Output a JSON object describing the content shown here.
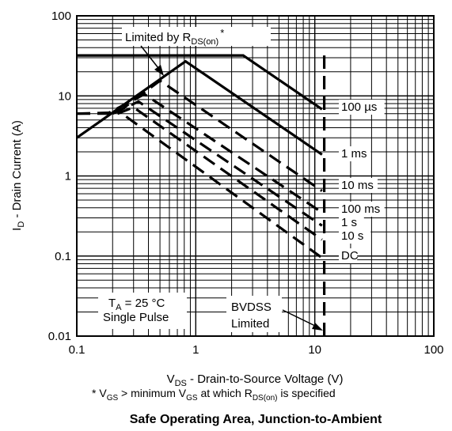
{
  "chart_data": {
    "type": "line",
    "title": "Safe Operating Area, Junction-to-Ambient",
    "xlabel": "V_DS - Drain-to-Source Voltage (V)",
    "ylabel": "I_D - Drain Current (A)",
    "x_scale": "log",
    "y_scale": "log",
    "xlim": [
      0.1,
      100
    ],
    "ylim": [
      0.01,
      100
    ],
    "grid": true,
    "x_ticks": [
      "0.1",
      "1",
      "10",
      "100"
    ],
    "y_ticks": [
      "0.01",
      "0.1",
      "1",
      "10",
      "100"
    ],
    "series": [
      {
        "name": "100 µs",
        "style": "solid",
        "points": [
          [
            0.1,
            32
          ],
          [
            2.5,
            32
          ],
          [
            11.5,
            6.8
          ]
        ]
      },
      {
        "name": "1 ms",
        "style": "solid",
        "points": [
          [
            0.1,
            3.0
          ],
          [
            0.82,
            27
          ],
          [
            11.5,
            1.85
          ]
        ]
      },
      {
        "name": "10 ms",
        "style": "dashed",
        "points": [
          [
            0.1,
            6.0
          ],
          [
            0.22,
            6.2
          ],
          [
            0.5,
            15.5
          ],
          [
            11.5,
            0.65
          ]
        ]
      },
      {
        "name": "100 ms",
        "style": "dashed",
        "points": [
          [
            0.1,
            6.0
          ],
          [
            0.18,
            6.0
          ],
          [
            0.37,
            10.5
          ],
          [
            11.5,
            0.35
          ]
        ]
      },
      {
        "name": "1 s",
        "style": "dashed",
        "points": [
          [
            0.2,
            6.0
          ],
          [
            0.33,
            8.5
          ],
          [
            11.5,
            0.24
          ]
        ]
      },
      {
        "name": "10 s",
        "style": "dashed",
        "points": [
          [
            0.22,
            6.0
          ],
          [
            0.3,
            7.2
          ],
          [
            11.5,
            0.16
          ]
        ]
      },
      {
        "name": "DC",
        "style": "dashed",
        "points": [
          [
            0.26,
            5.5
          ],
          [
            11.5,
            0.095
          ]
        ]
      },
      {
        "name": "BVDSS Limited",
        "style": "dashed",
        "points": [
          [
            12,
            0.01
          ],
          [
            12,
            32
          ]
        ]
      }
    ],
    "curve_labels": [
      "100 µs",
      "1 ms",
      "10 ms",
      "100 ms",
      "1 s",
      "10 s",
      "DC"
    ],
    "annotations": {
      "rds_limit": "Limited by R",
      "rds_sub": "DS(on)",
      "rds_star": "*",
      "ta_main": "T",
      "ta_sub": "A",
      "ta_rest": " = 25 °C",
      "pulse": "Single Pulse",
      "bvdss_1": "BVDSS",
      "bvdss_2": "Limited"
    },
    "axis_text": {
      "y_main": "I",
      "y_sub": "D",
      "y_rest": " - Drain Current (A)",
      "x_main": "V",
      "x_sub": "DS",
      "x_rest": " - Drain-to-Source Voltage (V)"
    },
    "footnote": {
      "a": "* V",
      "a_sub": "GS",
      "b": " >   minimum V",
      "b_sub": "GS",
      "c": " at which R",
      "c_sub": "DS(on)",
      "d": " is specified"
    }
  }
}
